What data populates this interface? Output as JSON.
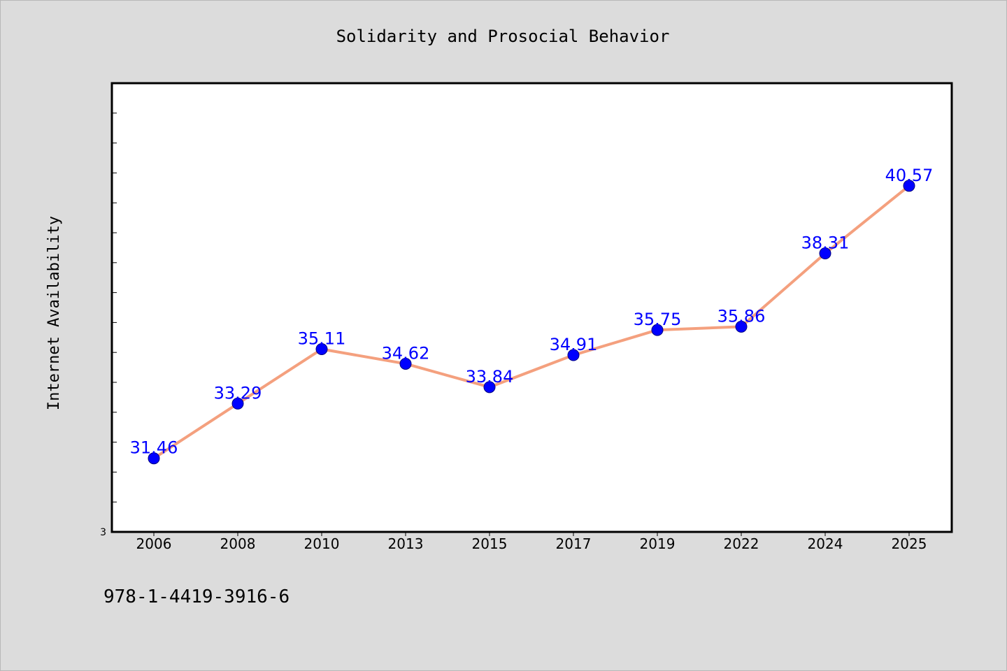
{
  "chart_data": {
    "type": "line",
    "title": "Solidarity and Prosocial Behavior",
    "xlabel": "",
    "ylabel": "Internet Availability",
    "categories": [
      "2006",
      "2008",
      "2010",
      "2013",
      "2015",
      "2017",
      "2019",
      "2022",
      "2024",
      "2025"
    ],
    "series": [
      {
        "name": "",
        "values": [
          31.46,
          33.29,
          35.11,
          34.62,
          33.84,
          34.91,
          35.75,
          35.86,
          38.31,
          40.57
        ]
      }
    ],
    "data_labels": [
      "31.46",
      "33.29",
      "35.11",
      "34.62",
      "33.84",
      "34.91",
      "35.75",
      "35.86",
      "38.31",
      "40.57"
    ],
    "y_tick_label": "3",
    "ylim": [
      29,
      44
    ],
    "grid": false,
    "line_color": "#f4a07e",
    "marker_color": "#0000ff",
    "label_color": "#0000ff",
    "background_color": "#dcdcdc",
    "plot_background_color": "#ffffff"
  },
  "footer": {
    "isbn": "978-1-4419-3916-6"
  }
}
